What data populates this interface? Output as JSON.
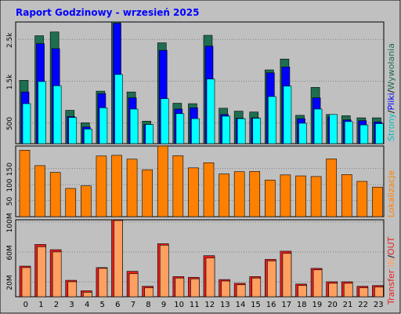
{
  "title": "Raport Godzinowy -   wrzesień 2025",
  "colors": {
    "frame_bg": "#c0c0c0",
    "title": "#0000ff",
    "plot_border": "#000000",
    "grid": "#808080",
    "hits": "#1e6e50",
    "files": "#0000ff",
    "pages": "#00ffff",
    "visits": "#ff8000",
    "sent": "#e61e1e",
    "recv": "#ffa060"
  },
  "legend": {
    "top": {
      "pages": "Strony",
      "sep1": "/",
      "files": "Pliki",
      "sep2": "/",
      "hits": "Wywołania"
    },
    "middle": {
      "visits": "Lokalizacje"
    },
    "bottom": {
      "sent": "Transfer",
      "sep1": " ",
      "in": "IN",
      "sep2": "/",
      "out": "OUT"
    }
  },
  "chart_data": [
    {
      "type": "bar",
      "categories": [
        "0",
        "1",
        "2",
        "3",
        "4",
        "5",
        "6",
        "7",
        "8",
        "9",
        "10",
        "11",
        "12",
        "13",
        "14",
        "15",
        "16",
        "17",
        "18",
        "19",
        "20",
        "21",
        "22",
        "23"
      ],
      "series": [
        {
          "name": "Wywołania",
          "values": [
            1520,
            2590,
            2680,
            800,
            500,
            1260,
            2920,
            1240,
            540,
            2420,
            970,
            960,
            2600,
            850,
            780,
            760,
            1770,
            2030,
            680,
            1350,
            700,
            670,
            620,
            620
          ]
        },
        {
          "name": "Pliki",
          "values": [
            1240,
            2400,
            2280,
            650,
            400,
            1200,
            2890,
            1100,
            460,
            2240,
            830,
            860,
            2340,
            700,
            610,
            620,
            1700,
            1840,
            600,
            1100,
            640,
            570,
            550,
            520
          ]
        },
        {
          "name": "Strony",
          "values": [
            960,
            1490,
            1390,
            630,
            350,
            860,
            1660,
            830,
            460,
            1080,
            720,
            600,
            1550,
            660,
            600,
            610,
            1130,
            1380,
            490,
            830,
            700,
            530,
            450,
            480
          ]
        }
      ],
      "ytick_labels": [
        "500",
        "1.5k",
        "2.5k"
      ]
    },
    {
      "type": "bar",
      "categories": [
        "0",
        "1",
        "2",
        "3",
        "4",
        "5",
        "6",
        "7",
        "8",
        "9",
        "10",
        "11",
        "12",
        "13",
        "14",
        "15",
        "16",
        "17",
        "18",
        "19",
        "20",
        "21",
        "22",
        "23"
      ],
      "series": [
        {
          "name": "Lokalizacje",
          "values": [
            207,
            159,
            138,
            88,
            96,
            189,
            191,
            179,
            146,
            220,
            190,
            152,
            168,
            133,
            140,
            141,
            114,
            130,
            127,
            125,
            180,
            131,
            110,
            92
          ]
        }
      ],
      "ytick_labels": [
        "50",
        "100",
        "150"
      ]
    },
    {
      "type": "bar",
      "categories": [
        "0",
        "1",
        "2",
        "3",
        "4",
        "5",
        "6",
        "7",
        "8",
        "9",
        "10",
        "11",
        "12",
        "13",
        "14",
        "15",
        "16",
        "17",
        "18",
        "19",
        "20",
        "21",
        "22",
        "23"
      ],
      "series": [
        {
          "name": "IN",
          "values": [
            41,
            70,
            63,
            22,
            8,
            39,
            103,
            34,
            14,
            71,
            27,
            26,
            55,
            23,
            18,
            27,
            50,
            61,
            17,
            38,
            20,
            20,
            14,
            15
          ]
        },
        {
          "name": "OUT",
          "values": [
            39,
            67,
            60,
            20,
            6,
            38,
            102,
            31,
            12,
            69,
            25,
            24,
            52,
            21,
            16,
            25,
            48,
            58,
            15,
            36,
            18,
            18,
            12,
            13
          ]
        }
      ],
      "ytick_labels": [
        "20M",
        "60M",
        "100M"
      ]
    }
  ]
}
